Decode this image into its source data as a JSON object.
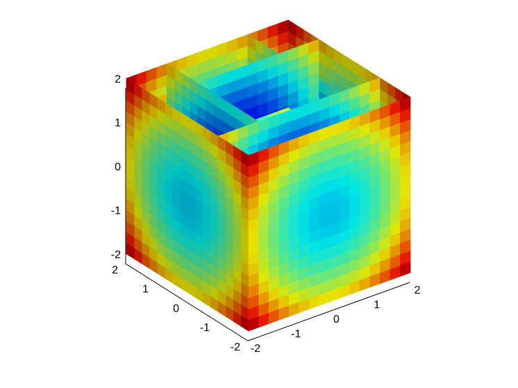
{
  "chart_data": {
    "type": "slice3d",
    "title": "",
    "xlabel": "",
    "ylabel": "",
    "zlabel": "",
    "function": "v = x^2 + y^2 + z^2",
    "colormap": "jet",
    "grid": false,
    "xlim": [
      -2,
      2
    ],
    "ylim": [
      -2,
      2
    ],
    "zlim": [
      -2,
      2
    ],
    "x_ticks": [
      "-2",
      "-1",
      "0",
      "1",
      "2"
    ],
    "y_ticks": [
      "-2",
      "-1",
      "0",
      "1",
      "2"
    ],
    "z_ticks": [
      "-2",
      "-1",
      "0",
      "1",
      "2"
    ],
    "slices": {
      "x": [
        -2,
        -1,
        1,
        2
      ],
      "y": [
        -2,
        -1,
        1,
        2
      ],
      "z": [
        -2,
        0
      ]
    }
  }
}
